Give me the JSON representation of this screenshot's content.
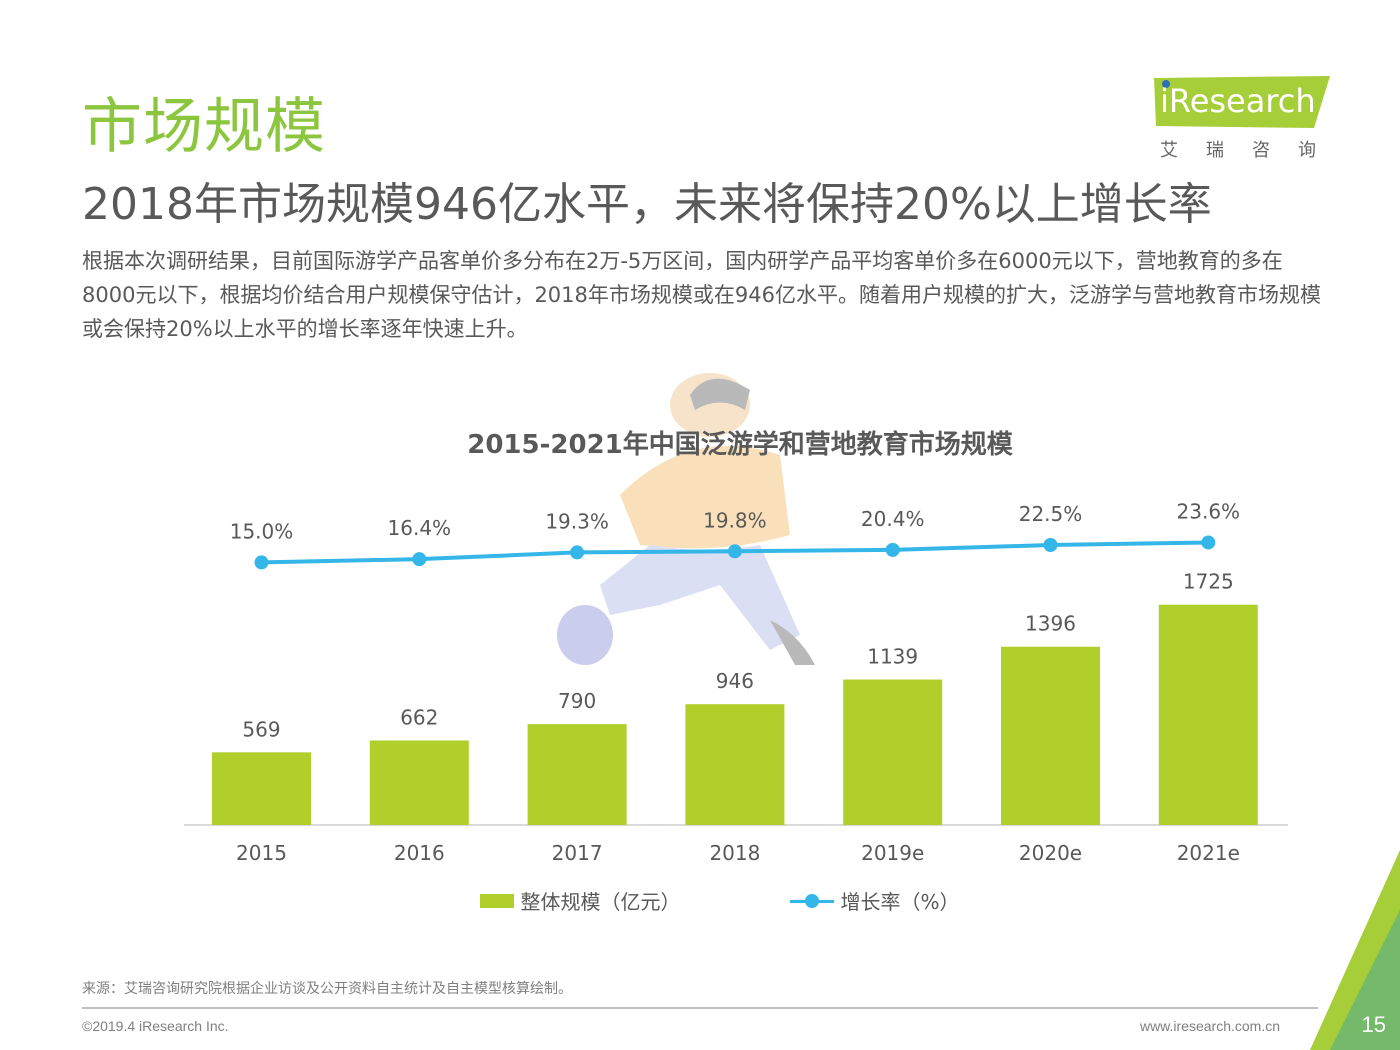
{
  "header": {
    "title": "市场规模",
    "subtitle": "2018年市场规模946亿水平，未来将保持20%以上增长率",
    "body": "根据本次调研结果，目前国际游学产品客单价多分布在2万-5万区间，国内研学产品平均客单价多在6000元以下，营地教育的多在8000元以下，根据均价结合用户规模保守估计，2018年市场规模或在946亿水平。随着用户规模的扩大，泛游学与营地教育市场规模或会保持20%以上水平的增长率逐年快速上升。"
  },
  "logo": {
    "word": "iResearch",
    "cn": "艾瑞咨询",
    "accent": "#a6ce39"
  },
  "chart_data": {
    "type": "bar",
    "title": "2015-2021年中国泛游学和营地教育市场规模",
    "categories": [
      "2015",
      "2016",
      "2017",
      "2018",
      "2019e",
      "2020e",
      "2021e"
    ],
    "series": [
      {
        "name": "整体规模（亿元）",
        "type": "bar",
        "color": "#b0cf2b",
        "values": [
          569,
          662,
          790,
          946,
          1139,
          1396,
          1725
        ]
      },
      {
        "name": "增长率（%）",
        "type": "line",
        "color": "#35b6e8",
        "values": [
          15.0,
          16.4,
          19.3,
          19.8,
          20.4,
          22.5,
          23.6
        ],
        "labels": [
          "15.0%",
          "16.4%",
          "19.3%",
          "19.8%",
          "20.4%",
          "22.5%",
          "23.6%"
        ]
      }
    ],
    "grid": false,
    "legend": "bottom-center"
  },
  "footer": {
    "source": "来源：艾瑞咨询研究院根据企业访谈及公开资料自主统计及自主模型核算绘制。",
    "copyright": "©2019.4 iResearch Inc.",
    "site": "www.iresearch.com.cn",
    "page": "15"
  }
}
